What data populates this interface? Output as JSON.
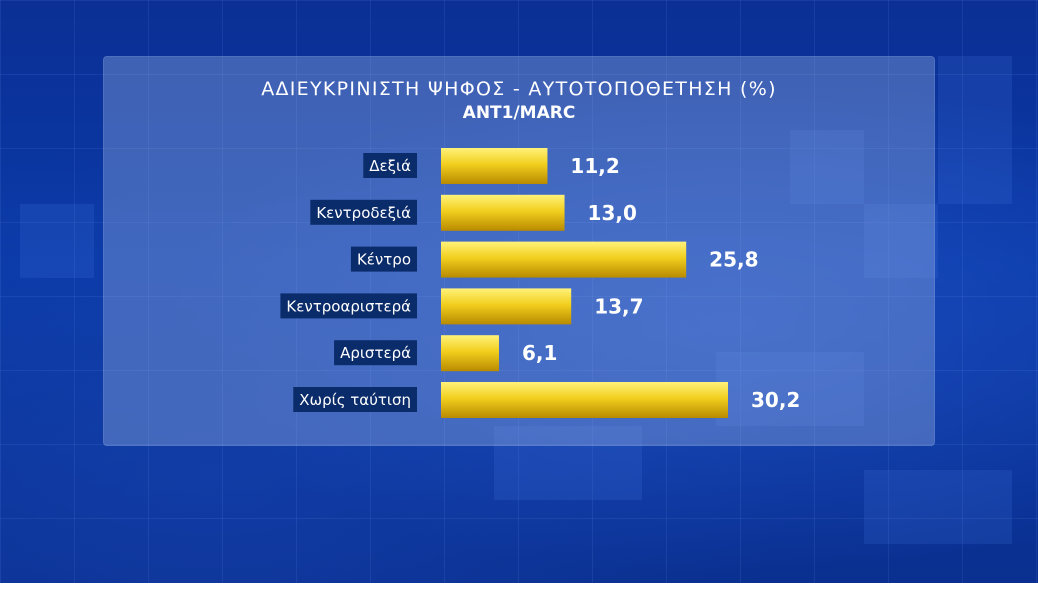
{
  "chart_data": {
    "type": "bar",
    "orientation": "horizontal",
    "title": "ΑΔΙΕΥΚΡΙΝΙΣΤΗ ΨΗΦΟΣ - ΑΥΤΟΤΟΠΟΘΕΤΗΣΗ (%)",
    "subtitle": "ANT1/MARC",
    "categories": [
      "Δεξιά",
      "Κεντροδεξιά",
      "Κέντρο",
      "Κεντροαριστερά",
      "Αριστερά",
      "Χωρίς ταύτιση"
    ],
    "values": [
      11.2,
      13.0,
      25.8,
      13.7,
      6.1,
      30.2
    ],
    "value_labels": [
      "11,2",
      "13,0",
      "25,8",
      "13,7",
      "6,1",
      "30,2"
    ],
    "xlim": [
      0,
      30.2
    ],
    "grid": false,
    "legend": "none"
  },
  "colors": {
    "bar_light": "#fff27a",
    "bar_mid": "#f2cf1e",
    "bar_dark": "#b88a00",
    "label_bg": "#0b2c6b"
  }
}
